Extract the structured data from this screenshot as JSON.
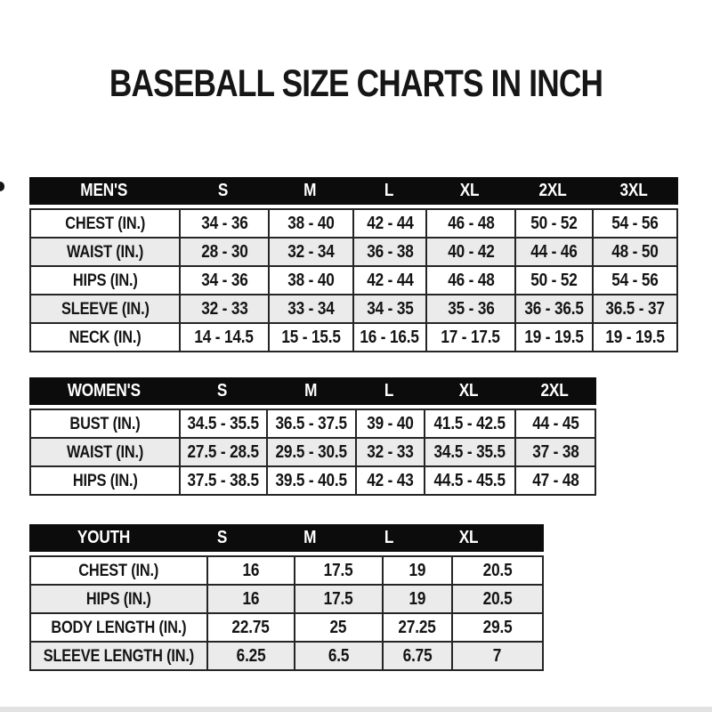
{
  "title": "BASEBALL SIZE CHARTS IN INCH",
  "colors": {
    "background": "#ffffff",
    "header_bar": "#0c0c0c",
    "header_text": "#ffffff",
    "grid_border": "#252525",
    "cell_text": "#141414",
    "zebra_row": "#ebebeb",
    "bottom_edge": "#e2e2e2"
  },
  "chart_data": [
    {
      "type": "table",
      "title": "MEN'S",
      "columns": [
        "MEN'S",
        "S",
        "M",
        "L",
        "XL",
        "2XL",
        "3XL"
      ],
      "rows": [
        [
          "CHEST (IN.)",
          "34 - 36",
          "38 - 40",
          "42 - 44",
          "46 - 48",
          "50 - 52",
          "54 - 56"
        ],
        [
          "WAIST (IN.)",
          "28 - 30",
          "32 - 34",
          "36 - 38",
          "40 - 42",
          "44 - 46",
          "48 - 50"
        ],
        [
          "HIPS (IN.)",
          "34 - 36",
          "38 - 40",
          "42 - 44",
          "46 - 48",
          "50 - 52",
          "54 - 56"
        ],
        [
          "SLEEVE (IN.)",
          "32 - 33",
          "33 - 34",
          "34 - 35",
          "35 - 36",
          "36 - 36.5",
          "36.5 - 37"
        ],
        [
          "NECK (IN.)",
          "14 - 14.5",
          "15 - 15.5",
          "16 - 16.5",
          "17 - 17.5",
          "19 - 19.5",
          "19 - 19.5"
        ]
      ]
    },
    {
      "type": "table",
      "title": "WOMEN'S",
      "columns": [
        "WOMEN'S",
        "S",
        "M",
        "L",
        "XL",
        "2XL"
      ],
      "rows": [
        [
          "BUST (IN.)",
          "34.5 - 35.5",
          "36.5 - 37.5",
          "39 - 40",
          "41.5 - 42.5",
          "44 - 45"
        ],
        [
          "WAIST (IN.)",
          "27.5 - 28.5",
          "29.5 - 30.5",
          "32 - 33",
          "34.5 - 35.5",
          "37 - 38"
        ],
        [
          "HIPS (IN.)",
          "37.5 - 38.5",
          "39.5 - 40.5",
          "42 - 43",
          "44.5 - 45.5",
          "47 - 48"
        ]
      ]
    },
    {
      "type": "table",
      "title": "YOUTH",
      "columns": [
        "YOUTH",
        "S",
        "M",
        "L",
        "XL"
      ],
      "rows": [
        [
          "CHEST (IN.)",
          "16",
          "17.5",
          "19",
          "20.5"
        ],
        [
          "HIPS (IN.)",
          "16",
          "17.5",
          "19",
          "20.5"
        ],
        [
          "BODY LENGTH (IN.)",
          "22.75",
          "25",
          "27.25",
          "29.5"
        ],
        [
          "SLEEVE LENGTH (IN.)",
          "6.25",
          "6.5",
          "6.75",
          "7"
        ]
      ]
    }
  ]
}
